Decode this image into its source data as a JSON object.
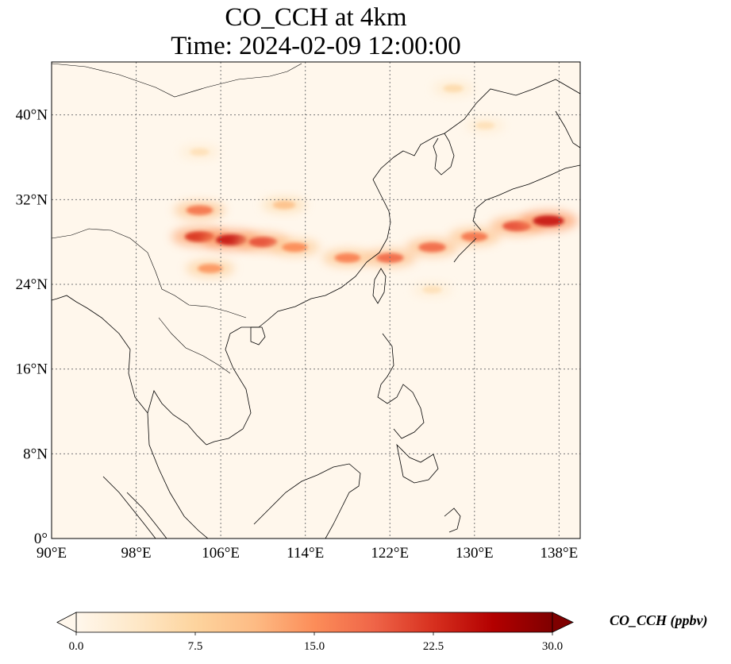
{
  "chart_data": {
    "type": "heatmap",
    "title": "CO_CCH at 4km",
    "subtitle": "Time: 2024-02-09 12:00:00",
    "x_ticks": [
      "90°E",
      "98°E",
      "106°E",
      "114°E",
      "122°E",
      "130°E",
      "138°E"
    ],
    "x_tick_values": [
      90,
      98,
      106,
      114,
      122,
      130,
      138
    ],
    "y_ticks": [
      "0°",
      "8°N",
      "16°N",
      "24°N",
      "32°N",
      "40°N"
    ],
    "y_tick_values": [
      0,
      8,
      16,
      24,
      32,
      40
    ],
    "xlim": [
      90,
      140
    ],
    "ylim": [
      0,
      45
    ],
    "grid": true,
    "colormap": "OrRd",
    "colorbar": {
      "label": "CO_CCH (ppbv)",
      "ticks": [
        "0.0",
        "7.5",
        "15.0",
        "22.5",
        "30.0"
      ],
      "tick_values": [
        0,
        7.5,
        15,
        22.5,
        30
      ],
      "range": [
        0,
        30
      ],
      "extend": "both",
      "colors": [
        "#fff7ec",
        "#fee8c8",
        "#fdd49e",
        "#fdbb84",
        "#fc8d59",
        "#ef6548",
        "#d7301f",
        "#b30000",
        "#7f0000"
      ]
    },
    "plumes": [
      {
        "lon": 104,
        "lat": 28.5,
        "value": 22
      },
      {
        "lon": 107,
        "lat": 28.2,
        "value": 24
      },
      {
        "lon": 110,
        "lat": 28.0,
        "value": 20
      },
      {
        "lon": 113,
        "lat": 27.5,
        "value": 15
      },
      {
        "lon": 118,
        "lat": 26.5,
        "value": 16
      },
      {
        "lon": 122,
        "lat": 26.5,
        "value": 18
      },
      {
        "lon": 126,
        "lat": 27.5,
        "value": 18
      },
      {
        "lon": 130,
        "lat": 28.5,
        "value": 17
      },
      {
        "lon": 134,
        "lat": 29.5,
        "value": 20
      },
      {
        "lon": 137,
        "lat": 30.0,
        "value": 24
      },
      {
        "lon": 104,
        "lat": 31.0,
        "value": 17
      },
      {
        "lon": 112,
        "lat": 31.5,
        "value": 10
      },
      {
        "lon": 104,
        "lat": 36.5,
        "value": 5
      },
      {
        "lon": 128,
        "lat": 42.5,
        "value": 6
      },
      {
        "lon": 131,
        "lat": 39.0,
        "value": 5
      },
      {
        "lon": 126,
        "lat": 23.5,
        "value": 5
      },
      {
        "lon": 105,
        "lat": 25.5,
        "value": 14
      }
    ]
  }
}
